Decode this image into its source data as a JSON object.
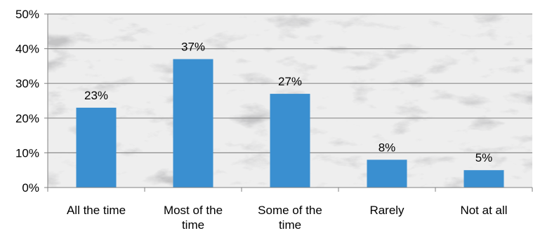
{
  "chart_data": {
    "type": "bar",
    "categories": [
      [
        "All the time"
      ],
      [
        "Most of the",
        "time"
      ],
      [
        "Some of the",
        "time"
      ],
      [
        "Rarely"
      ],
      [
        "Not at all"
      ]
    ],
    "values": [
      23,
      37,
      27,
      8,
      5
    ],
    "data_labels": [
      "23%",
      "37%",
      "27%",
      "8%",
      "5%"
    ],
    "y_ticks": [
      {
        "value": 0,
        "label": "0%"
      },
      {
        "value": 10,
        "label": "10%"
      },
      {
        "value": 20,
        "label": "20%"
      },
      {
        "value": 30,
        "label": "30%"
      },
      {
        "value": 40,
        "label": "40%"
      },
      {
        "value": 50,
        "label": "50%"
      }
    ],
    "ylim": [
      0,
      50
    ],
    "grid": true,
    "legend": "none",
    "bar_color": "#3a8fd0",
    "grid_color": "#8c8c8c",
    "background": "marble-texture"
  }
}
